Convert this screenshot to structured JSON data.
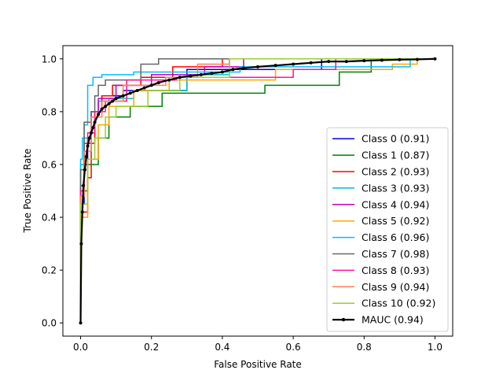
{
  "chart_data": {
    "type": "line",
    "title": "",
    "xlabel": "False Positive Rate",
    "ylabel": "True Positive Rate",
    "xlim": [
      -0.05,
      1.05
    ],
    "ylim": [
      -0.05,
      1.05
    ],
    "xticks": [
      0.0,
      0.2,
      0.4,
      0.6,
      0.8,
      1.0
    ],
    "yticks": [
      0.0,
      0.2,
      0.4,
      0.6,
      0.8,
      1.0
    ],
    "xtick_labels": [
      "0.0",
      "0.2",
      "0.4",
      "0.6",
      "0.8",
      "1.0"
    ],
    "ytick_labels": [
      "0.0",
      "0.2",
      "0.4",
      "0.6",
      "0.8",
      "1.0"
    ],
    "grid": false,
    "legend_position": "lower-right",
    "series": [
      {
        "name": "Class 0 (0.91)",
        "color": "#0000cc",
        "step": true,
        "x": [
          0,
          0,
          0.01,
          0.01,
          0.02,
          0.02,
          0.03,
          0.03,
          0.06,
          0.06,
          0.12,
          0.12,
          0.3,
          0.3,
          0.68,
          0.68,
          1.0
        ],
        "y": [
          0,
          0.45,
          0.45,
          0.6,
          0.6,
          0.7,
          0.7,
          0.8,
          0.8,
          0.86,
          0.86,
          0.88,
          0.88,
          0.96,
          0.96,
          1.0,
          1.0
        ]
      },
      {
        "name": "Class 1 (0.87)",
        "color": "#008000",
        "step": true,
        "x": [
          0,
          0,
          0.02,
          0.02,
          0.05,
          0.05,
          0.08,
          0.08,
          0.14,
          0.14,
          0.23,
          0.23,
          0.52,
          0.52,
          0.73,
          0.73,
          0.82,
          0.82,
          1.0
        ],
        "y": [
          0,
          0.5,
          0.5,
          0.6,
          0.6,
          0.7,
          0.7,
          0.78,
          0.78,
          0.82,
          0.82,
          0.87,
          0.87,
          0.9,
          0.9,
          0.95,
          0.95,
          1.0,
          1.0
        ]
      },
      {
        "name": "Class 2 (0.93)",
        "color": "#ff0000",
        "step": true,
        "x": [
          0,
          0,
          0.02,
          0.02,
          0.03,
          0.03,
          0.04,
          0.04,
          0.06,
          0.06,
          0.09,
          0.09,
          0.17,
          0.17,
          0.26,
          0.26,
          0.4,
          0.4,
          1.0
        ],
        "y": [
          0,
          0.42,
          0.42,
          0.55,
          0.55,
          0.68,
          0.68,
          0.8,
          0.8,
          0.86,
          0.86,
          0.9,
          0.9,
          0.93,
          0.93,
          0.97,
          0.97,
          1.0,
          1.0
        ]
      },
      {
        "name": "Class 3 (0.93)",
        "color": "#00bfbf",
        "step": true,
        "x": [
          0,
          0,
          0.01,
          0.01,
          0.03,
          0.03,
          0.05,
          0.05,
          0.08,
          0.08,
          0.15,
          0.15,
          0.3,
          0.3,
          0.42,
          0.42,
          1.0
        ],
        "y": [
          0,
          0.6,
          0.6,
          0.7,
          0.7,
          0.8,
          0.8,
          0.84,
          0.84,
          0.85,
          0.85,
          0.88,
          0.88,
          0.94,
          0.94,
          1.0,
          1.0
        ]
      },
      {
        "name": "Class 4 (0.94)",
        "color": "#bf00bf",
        "step": true,
        "x": [
          0,
          0,
          0.01,
          0.01,
          0.03,
          0.03,
          0.05,
          0.05,
          0.1,
          0.1,
          0.2,
          0.2,
          0.35,
          0.35,
          0.46,
          0.46,
          1.0
        ],
        "y": [
          0,
          0.52,
          0.52,
          0.68,
          0.68,
          0.78,
          0.78,
          0.85,
          0.85,
          0.9,
          0.9,
          0.94,
          0.94,
          0.97,
          0.97,
          1.0,
          1.0
        ]
      },
      {
        "name": "Class 5 (0.92)",
        "color": "#ffa500",
        "step": true,
        "x": [
          0,
          0,
          0.02,
          0.02,
          0.05,
          0.05,
          0.08,
          0.08,
          0.15,
          0.15,
          0.25,
          0.25,
          0.55,
          0.55,
          0.88,
          0.88,
          0.95,
          0.95,
          1.0
        ],
        "y": [
          0,
          0.4,
          0.4,
          0.62,
          0.62,
          0.75,
          0.75,
          0.82,
          0.82,
          0.88,
          0.88,
          0.92,
          0.92,
          0.96,
          0.96,
          0.98,
          0.98,
          1.0,
          1.0
        ]
      },
      {
        "name": "Class 6 (0.96)",
        "color": "#00bfff",
        "step": true,
        "x": [
          0,
          0,
          0.005,
          0.005,
          0.01,
          0.01,
          0.02,
          0.02,
          0.035,
          0.035,
          0.06,
          0.06,
          0.15,
          0.15,
          0.45,
          0.45,
          0.93,
          0.93,
          1.0
        ],
        "y": [
          0,
          0.62,
          0.62,
          0.7,
          0.7,
          0.75,
          0.75,
          0.9,
          0.9,
          0.93,
          0.93,
          0.94,
          0.94,
          0.95,
          0.95,
          0.97,
          0.97,
          1.0,
          1.0
        ]
      },
      {
        "name": "Class 7 (0.98)",
        "color": "#666666",
        "step": true,
        "x": [
          0,
          0,
          0.01,
          0.01,
          0.03,
          0.03,
          0.04,
          0.04,
          0.05,
          0.05,
          0.07,
          0.07,
          0.17,
          0.17,
          0.2,
          0.2,
          0.22,
          0.22,
          1.0
        ],
        "y": [
          0,
          0.58,
          0.58,
          0.76,
          0.76,
          0.8,
          0.8,
          0.86,
          0.86,
          0.9,
          0.9,
          0.92,
          0.92,
          0.98,
          0.98,
          0.98,
          0.98,
          1.0,
          1.0
        ]
      },
      {
        "name": "Class 8 (0.93)",
        "color": "#ff1493",
        "step": true,
        "x": [
          0,
          0,
          0.01,
          0.01,
          0.02,
          0.02,
          0.04,
          0.04,
          0.07,
          0.07,
          0.13,
          0.13,
          0.27,
          0.27,
          0.6,
          0.6,
          0.72,
          0.72,
          1.0
        ],
        "y": [
          0,
          0.5,
          0.5,
          0.65,
          0.65,
          0.72,
          0.72,
          0.8,
          0.8,
          0.84,
          0.84,
          0.92,
          0.92,
          0.93,
          0.93,
          0.96,
          0.96,
          1.0,
          1.0
        ]
      },
      {
        "name": "Class 9 (0.94)",
        "color": "#ff7f50",
        "step": true,
        "x": [
          0,
          0,
          0.01,
          0.01,
          0.03,
          0.03,
          0.06,
          0.06,
          0.12,
          0.12,
          0.24,
          0.24,
          0.33,
          0.33,
          0.42,
          0.42,
          1.0
        ],
        "y": [
          0,
          0.48,
          0.48,
          0.65,
          0.65,
          0.78,
          0.78,
          0.84,
          0.84,
          0.9,
          0.9,
          0.93,
          0.93,
          0.98,
          0.98,
          1.0,
          1.0
        ]
      },
      {
        "name": "Class 10 (0.92)",
        "color": "#9acd32",
        "step": true,
        "x": [
          0,
          0,
          0.02,
          0.02,
          0.04,
          0.04,
          0.07,
          0.07,
          0.1,
          0.1,
          0.19,
          0.19,
          0.28,
          0.28,
          0.42,
          0.42,
          1.0
        ],
        "y": [
          0,
          0.45,
          0.45,
          0.62,
          0.62,
          0.7,
          0.7,
          0.78,
          0.78,
          0.82,
          0.82,
          0.88,
          0.88,
          0.93,
          0.93,
          1.0,
          1.0
        ]
      },
      {
        "name": " MAUC (0.94)",
        "color": "#000000",
        "step": false,
        "markers": true,
        "x": [
          0,
          0.002,
          0.005,
          0.008,
          0.012,
          0.016,
          0.02,
          0.025,
          0.03,
          0.035,
          0.04,
          0.05,
          0.06,
          0.07,
          0.08,
          0.09,
          0.1,
          0.12,
          0.14,
          0.16,
          0.18,
          0.2,
          0.22,
          0.25,
          0.28,
          0.31,
          0.34,
          0.37,
          0.4,
          0.43,
          0.46,
          0.5,
          0.55,
          0.6,
          0.65,
          0.7,
          0.75,
          0.8,
          0.85,
          0.9,
          0.95,
          1.0
        ],
        "y": [
          0,
          0.3,
          0.42,
          0.52,
          0.58,
          0.63,
          0.67,
          0.7,
          0.72,
          0.74,
          0.76,
          0.79,
          0.81,
          0.82,
          0.83,
          0.84,
          0.85,
          0.86,
          0.87,
          0.88,
          0.89,
          0.9,
          0.91,
          0.92,
          0.93,
          0.935,
          0.94,
          0.945,
          0.95,
          0.96,
          0.965,
          0.97,
          0.975,
          0.98,
          0.985,
          0.99,
          0.99,
          0.993,
          0.995,
          0.997,
          0.998,
          1.0
        ]
      }
    ]
  }
}
